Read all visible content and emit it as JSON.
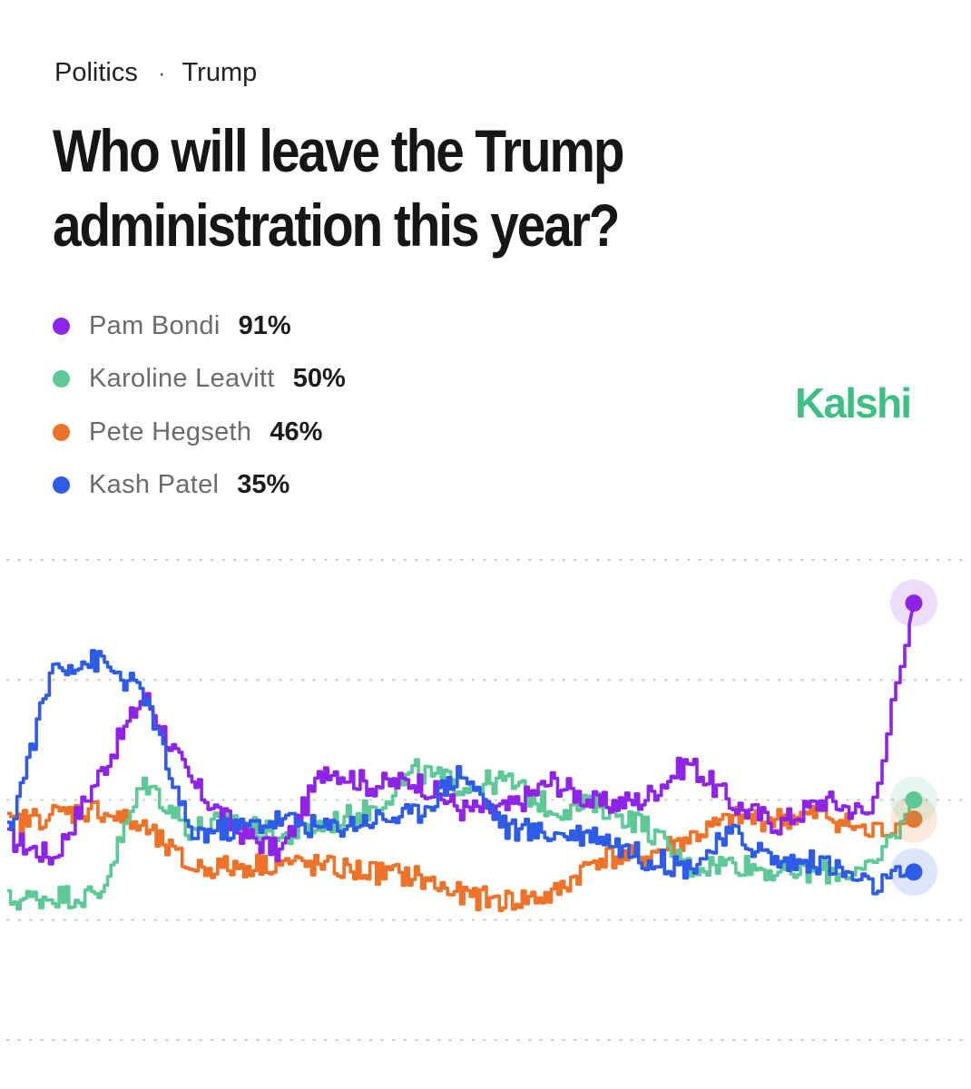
{
  "breadcrumb": {
    "category": "Politics",
    "separator": "·",
    "topic": "Trump"
  },
  "title_lines": [
    "Who will leave the Trump",
    "administration this year?"
  ],
  "brand": "Kalshi",
  "legend": [
    {
      "name": "Pam Bondi",
      "value": "91%",
      "color": "#8f23e8"
    },
    {
      "name": "Karoline Leavitt",
      "value": "50%",
      "color": "#5ec996"
    },
    {
      "name": "Pete Hegseth",
      "value": "46%",
      "color": "#ee7228"
    },
    {
      "name": "Kash Patel",
      "value": "35%",
      "color": "#2e5ce6"
    }
  ],
  "chart_data": {
    "type": "line",
    "title": "Who will leave the Trump administration this year?",
    "xlabel": "",
    "ylabel": "",
    "ylim": [
      0,
      100
    ],
    "grid": true,
    "gridlines_y": [
      25,
      50,
      75,
      100
    ],
    "x": [
      0,
      5,
      10,
      15,
      20,
      25,
      30,
      35,
      40,
      45,
      50,
      55,
      60,
      65,
      70,
      75,
      80,
      85,
      90,
      95,
      100
    ],
    "series": [
      {
        "name": "Pam Bondi",
        "color": "#8f23e8",
        "final": 91,
        "values": [
          42,
          38,
          55,
          72,
          54,
          44,
          39,
          57,
          53,
          54,
          48,
          48,
          54,
          49,
          50,
          58,
          49,
          45,
          50,
          47,
          91
        ]
      },
      {
        "name": "Karoline Leavitt",
        "color": "#5ec996",
        "final": 50,
        "values": [
          29,
          30,
          30,
          54,
          44,
          46,
          42,
          45,
          48,
          56,
          53,
          54,
          48,
          49,
          45,
          36,
          37,
          35,
          35,
          35,
          50
        ]
      },
      {
        "name": "Pete Hegseth",
        "color": "#ee7228",
        "final": 46,
        "values": [
          45,
          47,
          48,
          44,
          36,
          36,
          37,
          36,
          35,
          34,
          30,
          29,
          30,
          38,
          38,
          42,
          46,
          46,
          47,
          43,
          46
        ]
      },
      {
        "name": "Kash Patel",
        "color": "#2e5ce6",
        "final": 35,
        "values": [
          43,
          78,
          79,
          72,
          43,
          44,
          46,
          44,
          46,
          47,
          56,
          44,
          43,
          43,
          38,
          36,
          43,
          37,
          37,
          32,
          35
        ]
      }
    ]
  }
}
